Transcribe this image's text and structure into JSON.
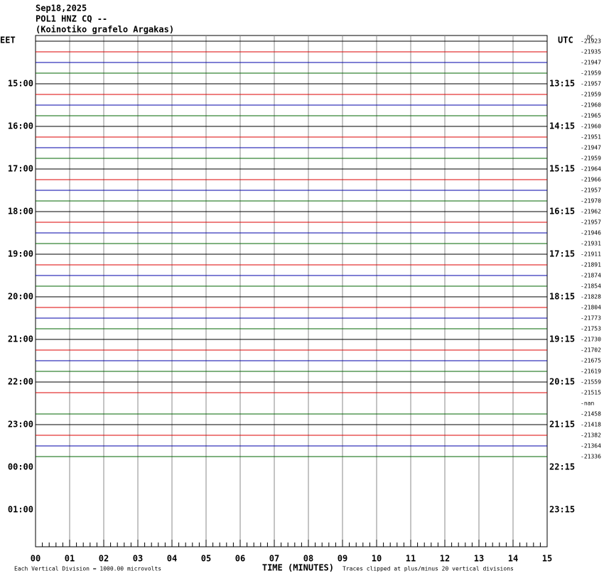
{
  "header": {
    "date": "Sep18,2025",
    "station": "POL1 HNZ CQ --",
    "location": "(Koinotiko grafelo Argakas)"
  },
  "left_label": "EET",
  "right_label": "UTC",
  "dc_label": "DC",
  "eet_times": [
    "15:00",
    "16:00",
    "17:00",
    "18:00",
    "19:00",
    "20:00",
    "21:00",
    "22:00",
    "23:00",
    "00:00",
    "01:00"
  ],
  "utc_times": [
    "13:15",
    "14:15",
    "15:15",
    "16:15",
    "17:15",
    "18:15",
    "19:15",
    "20:15",
    "21:15",
    "22:15",
    "23:15"
  ],
  "dc_values": [
    "-21923",
    "-21935",
    "-21947",
    "-21959",
    "-21957",
    "-21959",
    "-21960",
    "-21965",
    "-21960",
    "-21951",
    "-21947",
    "-21959",
    "-21964",
    "-21966",
    "-21957",
    "-21970",
    "-21962",
    "-21957",
    "-21946",
    "-21931",
    "-21911",
    "-21891",
    "-21874",
    "-21854",
    "-21828",
    "-21804",
    "-21773",
    "-21753",
    "-21730",
    "-21702",
    "-21675",
    "-21619",
    "-21559",
    "-21515",
    "-nan",
    "-21458",
    "-21418",
    "-21382",
    "-21364",
    "-21336"
  ],
  "x_ticks": [
    "00",
    "01",
    "02",
    "03",
    "04",
    "05",
    "06",
    "07",
    "08",
    "09",
    "10",
    "11",
    "12",
    "13",
    "14",
    "15"
  ],
  "x_title": "TIME (MINUTES)",
  "footer_left": "Each Vertical Division = 1000.00 microvolts",
  "footer_right": "Traces clipped at plus/minus 20 vertical divisions"
}
